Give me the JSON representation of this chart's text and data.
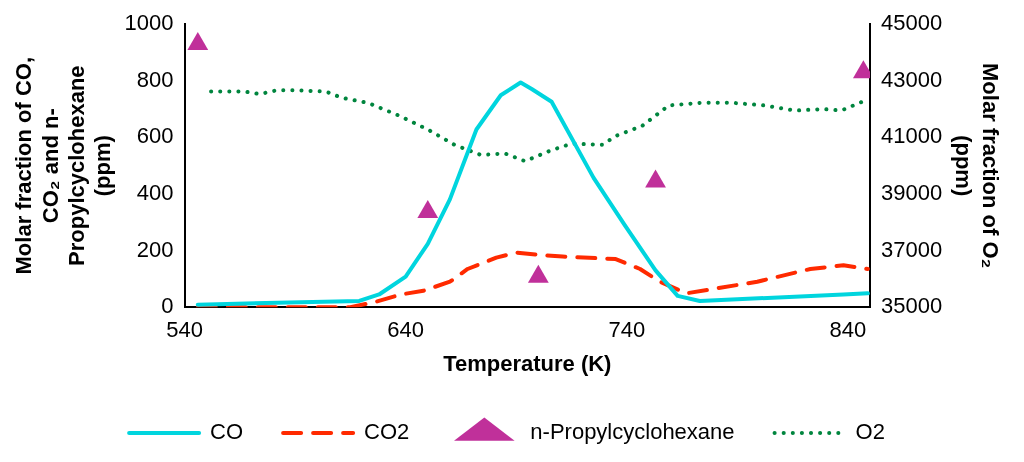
{
  "chart_data": {
    "type": "line",
    "xlabel": "Temperature (K)",
    "ylabel": "Molar fraction of CO,\nCO₂ and n-\nPropylcyclohexane\n(ppm)",
    "y2label": "Molar fraction of O₂\n(ppm)",
    "xlim": [
      540,
      850
    ],
    "xticks": [
      540,
      640,
      740,
      840
    ],
    "ylim": [
      0,
      1000
    ],
    "yticks": [
      0,
      200,
      400,
      600,
      800,
      1000
    ],
    "y2lim": [
      35000,
      45000
    ],
    "y2ticks": [
      35000,
      37000,
      39000,
      41000,
      43000,
      45000
    ],
    "grid": false,
    "legend": "bottom",
    "series": [
      {
        "name": "CO",
        "type": "line",
        "color": "#00d5de",
        "line_style": "solid",
        "marker": "none",
        "x": [
          546,
          619,
          628,
          640,
          650,
          660,
          672,
          683,
          692,
          697,
          706,
          725,
          739,
          753,
          763,
          773,
          838,
          849
        ],
        "values": [
          9,
          22,
          45,
          108,
          224,
          381,
          628,
          749,
          794,
          771,
          726,
          457,
          291,
          130,
          40,
          22,
          45,
          49
        ]
      },
      {
        "name": "CO2",
        "type": "line",
        "color": "#ff2a00",
        "line_style": "dashed",
        "marker": "none",
        "x": [
          546,
          615,
          626,
          638,
          648,
          660,
          668,
          681,
          690,
          701,
          711,
          735,
          746,
          755,
          767,
          799,
          823,
          838,
          849
        ],
        "values": [
          0,
          0,
          18,
          45,
          58,
          90,
          135,
          175,
          193,
          184,
          179,
          170,
          135,
          90,
          49,
          90,
          135,
          148,
          135
        ]
      },
      {
        "name": "n-Propylcyclohexane",
        "type": "scatter",
        "color": "#c0309a",
        "marker": "triangle",
        "x": [
          546,
          650,
          700,
          753,
          847
        ],
        "values": [
          930,
          336,
          108,
          444,
          830
        ]
      },
      {
        "name": "O2",
        "type": "line",
        "axis": "y2",
        "color": "#00853e",
        "line_style": "dotted",
        "marker": "none",
        "x": [
          552,
          567,
          574,
          582,
          589,
          604,
          611,
          623,
          637,
          650,
          662,
          674,
          685,
          694,
          705,
          715,
          729,
          735,
          747,
          759,
          773,
          788,
          802,
          816,
          829,
          837,
          848
        ],
        "values": [
          42620,
          42620,
          42530,
          42670,
          42670,
          42620,
          42400,
          42220,
          41770,
          41280,
          40740,
          40380,
          40430,
          40160,
          40520,
          40780,
          40740,
          41050,
          41410,
          42130,
          42220,
          42220,
          42130,
          41950,
          42000,
          41950,
          42310
        ]
      }
    ]
  }
}
